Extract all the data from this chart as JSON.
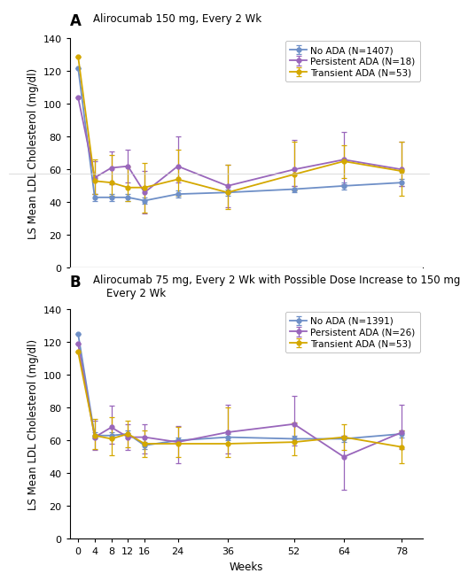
{
  "panel_A": {
    "title_line1": "Alirocumab 150 mg, Every 2 Wk",
    "title_line2": null,
    "weeks": [
      0,
      4,
      8,
      12,
      16,
      24,
      36,
      52,
      64,
      78
    ],
    "no_ada": {
      "label": "No ADA (N=1407)",
      "color": "#6E8FC7",
      "y": [
        122,
        43,
        43,
        43,
        41,
        45,
        46,
        48,
        50,
        52
      ],
      "yerr_lo": [
        0,
        2,
        2,
        2,
        2,
        2,
        2,
        2,
        2,
        2
      ],
      "yerr_hi": [
        0,
        2,
        2,
        2,
        2,
        2,
        2,
        2,
        2,
        2
      ]
    },
    "persistent_ada": {
      "label": "Persistent ADA (N=18)",
      "color": "#9966BB",
      "y": [
        104,
        55,
        61,
        62,
        46,
        62,
        50,
        60,
        66,
        60
      ],
      "yerr_lo": [
        0,
        10,
        10,
        10,
        13,
        10,
        13,
        10,
        15,
        10
      ],
      "yerr_hi": [
        0,
        10,
        10,
        10,
        13,
        18,
        13,
        18,
        17,
        17
      ]
    },
    "transient_ada": {
      "label": "Transient ADA (N=53)",
      "color": "#D4A800",
      "y": [
        129,
        53,
        52,
        49,
        49,
        54,
        46,
        57,
        65,
        59
      ],
      "yerr_lo": [
        0,
        8,
        8,
        8,
        15,
        10,
        10,
        10,
        10,
        15
      ],
      "yerr_hi": [
        0,
        13,
        17,
        13,
        15,
        18,
        17,
        20,
        10,
        18
      ]
    }
  },
  "panel_B": {
    "title_line1": "Alirocumab 75 mg, Every 2 Wk with Possible Dose Increase to 150 mg",
    "title_line2": "Every 2 Wk",
    "weeks": [
      0,
      4,
      8,
      12,
      16,
      24,
      36,
      52,
      64,
      78
    ],
    "no_ada": {
      "label": "No ADA (N=1391)",
      "color": "#6E8FC7",
      "y": [
        125,
        63,
        63,
        64,
        57,
        60,
        62,
        61,
        61,
        64
      ],
      "yerr_lo": [
        0,
        2,
        2,
        2,
        2,
        2,
        2,
        2,
        2,
        2
      ],
      "yerr_hi": [
        0,
        2,
        2,
        2,
        2,
        2,
        2,
        2,
        2,
        2
      ]
    },
    "persistent_ada": {
      "label": "Persistent ADA (N=26)",
      "color": "#9966BB",
      "y": [
        119,
        62,
        68,
        62,
        62,
        59,
        65,
        70,
        50,
        65
      ],
      "yerr_lo": [
        0,
        8,
        10,
        8,
        10,
        13,
        13,
        13,
        20,
        10
      ],
      "yerr_hi": [
        0,
        10,
        13,
        8,
        8,
        10,
        17,
        17,
        13,
        17
      ]
    },
    "transient_ada": {
      "label": "Transient ADA (N=53)",
      "color": "#D4A800",
      "y": [
        114,
        63,
        61,
        64,
        58,
        58,
        58,
        59,
        62,
        56
      ],
      "yerr_lo": [
        0,
        8,
        10,
        8,
        8,
        8,
        8,
        8,
        8,
        10
      ],
      "yerr_hi": [
        0,
        10,
        13,
        8,
        8,
        10,
        22,
        12,
        8,
        10
      ]
    }
  },
  "ylabel": "LS Mean LDL Cholesterol (mg/dl)",
  "xlabel": "Weeks",
  "ylim": [
    0,
    140
  ],
  "yticks": [
    0,
    20,
    40,
    60,
    80,
    100,
    120,
    140
  ],
  "xticks": [
    0,
    4,
    8,
    12,
    16,
    24,
    36,
    52,
    64,
    78
  ],
  "bg_color": "#FFFFFF",
  "marker": "o",
  "markersize": 3.5,
  "linewidth": 1.3,
  "elinewidth": 0.9,
  "capsize": 2.5,
  "title_fontsize": 8.5,
  "panel_label_fontsize": 12,
  "tick_fontsize": 8,
  "axis_label_fontsize": 8.5,
  "legend_fontsize": 7.5
}
